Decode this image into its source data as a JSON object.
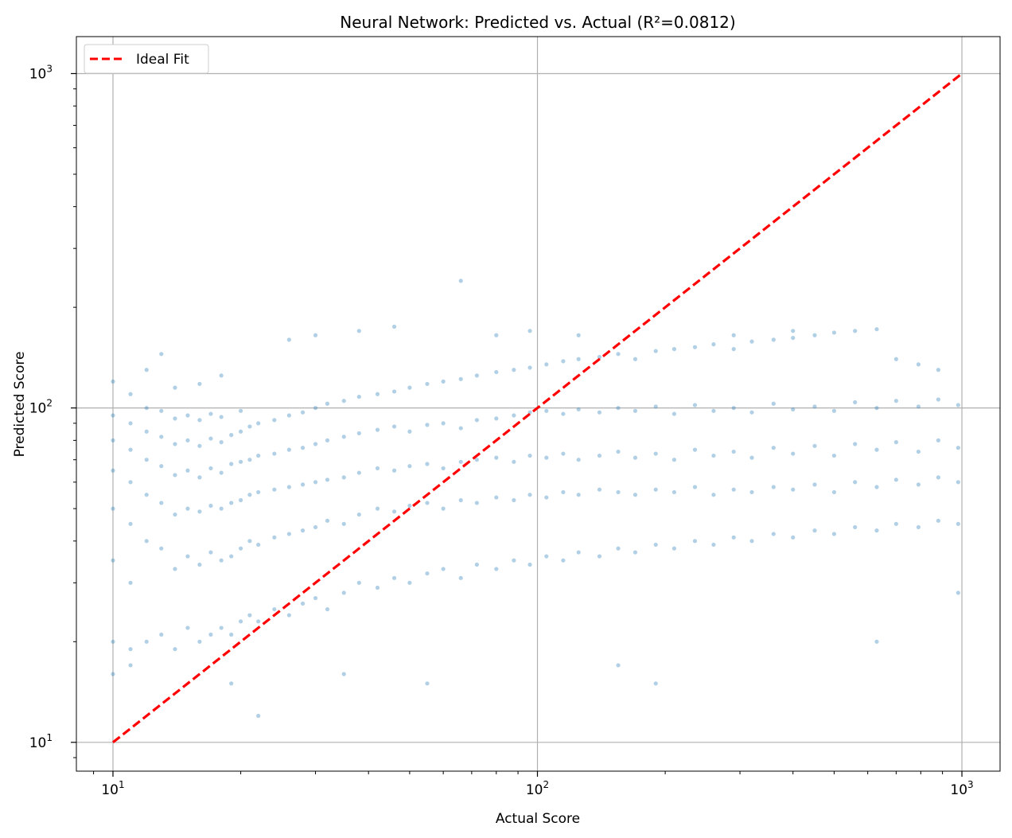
{
  "chart_data": {
    "type": "scatter",
    "title": "Neural Network: Predicted vs. Actual (R²=0.0812)",
    "xlabel": "Actual Score",
    "ylabel": "Predicted Score",
    "xscale": "log",
    "yscale": "log",
    "xlim": [
      8.2,
      1230
    ],
    "ylim": [
      8.2,
      1290
    ],
    "x_ticks": [
      {
        "value": 10,
        "base": "10",
        "exp": "1"
      },
      {
        "value": 100,
        "base": "10",
        "exp": "2"
      },
      {
        "value": 1000,
        "base": "10",
        "exp": "3"
      }
    ],
    "y_ticks": [
      {
        "value": 10,
        "base": "10",
        "exp": "1"
      },
      {
        "value": 100,
        "base": "10",
        "exp": "2"
      },
      {
        "value": 1000,
        "base": "10",
        "exp": "3"
      }
    ],
    "grid": true,
    "legend": {
      "position": "top-left",
      "entries": [
        "Ideal Fit"
      ]
    },
    "series": [
      {
        "kind": "scatter",
        "color": "#1f77b4",
        "opacity": 0.15,
        "points": [
          [
            10,
            20
          ],
          [
            10,
            35
          ],
          [
            10,
            50
          ],
          [
            10,
            65
          ],
          [
            10,
            80
          ],
          [
            10,
            95
          ],
          [
            10,
            120
          ],
          [
            10,
            16
          ],
          [
            11,
            19
          ],
          [
            11,
            30
          ],
          [
            11,
            45
          ],
          [
            11,
            60
          ],
          [
            11,
            75
          ],
          [
            11,
            90
          ],
          [
            11,
            110
          ],
          [
            11,
            17
          ],
          [
            12,
            20
          ],
          [
            12,
            40
          ],
          [
            12,
            55
          ],
          [
            12,
            70
          ],
          [
            12,
            85
          ],
          [
            12,
            100
          ],
          [
            12,
            130
          ],
          [
            13,
            21
          ],
          [
            13,
            38
          ],
          [
            13,
            52
          ],
          [
            13,
            67
          ],
          [
            13,
            82
          ],
          [
            13,
            98
          ],
          [
            13,
            145
          ],
          [
            14,
            19
          ],
          [
            14,
            33
          ],
          [
            14,
            48
          ],
          [
            14,
            63
          ],
          [
            14,
            78
          ],
          [
            14,
            93
          ],
          [
            14,
            115
          ],
          [
            15,
            22
          ],
          [
            15,
            36
          ],
          [
            15,
            50
          ],
          [
            15,
            65
          ],
          [
            15,
            80
          ],
          [
            15,
            95
          ],
          [
            16,
            20
          ],
          [
            16,
            34
          ],
          [
            16,
            49
          ],
          [
            16,
            62
          ],
          [
            16,
            77
          ],
          [
            16,
            92
          ],
          [
            16,
            118
          ],
          [
            17,
            21
          ],
          [
            17,
            37
          ],
          [
            17,
            51
          ],
          [
            17,
            66
          ],
          [
            17,
            81
          ],
          [
            17,
            96
          ],
          [
            18,
            22
          ],
          [
            18,
            35
          ],
          [
            18,
            50
          ],
          [
            18,
            64
          ],
          [
            18,
            79
          ],
          [
            18,
            94
          ],
          [
            18,
            125
          ],
          [
            19,
            21
          ],
          [
            19,
            36
          ],
          [
            19,
            52
          ],
          [
            19,
            68
          ],
          [
            19,
            83
          ],
          [
            19,
            15
          ],
          [
            20,
            23
          ],
          [
            20,
            38
          ],
          [
            20,
            53
          ],
          [
            20,
            69
          ],
          [
            20,
            85
          ],
          [
            20,
            98
          ],
          [
            21,
            24
          ],
          [
            21,
            40
          ],
          [
            21,
            55
          ],
          [
            21,
            70
          ],
          [
            21,
            88
          ],
          [
            22,
            23
          ],
          [
            22,
            39
          ],
          [
            22,
            56
          ],
          [
            22,
            72
          ],
          [
            22,
            90
          ],
          [
            22,
            12
          ],
          [
            24,
            25
          ],
          [
            24,
            41
          ],
          [
            24,
            57
          ],
          [
            24,
            73
          ],
          [
            24,
            92
          ],
          [
            26,
            24
          ],
          [
            26,
            42
          ],
          [
            26,
            58
          ],
          [
            26,
            75
          ],
          [
            26,
            95
          ],
          [
            26,
            160
          ],
          [
            28,
            26
          ],
          [
            28,
            43
          ],
          [
            28,
            59
          ],
          [
            28,
            76
          ],
          [
            28,
            97
          ],
          [
            30,
            27
          ],
          [
            30,
            44
          ],
          [
            30,
            60
          ],
          [
            30,
            78
          ],
          [
            30,
            100
          ],
          [
            30,
            165
          ],
          [
            32,
            25
          ],
          [
            32,
            46
          ],
          [
            32,
            61
          ],
          [
            32,
            80
          ],
          [
            32,
            103
          ],
          [
            35,
            28
          ],
          [
            35,
            45
          ],
          [
            35,
            62
          ],
          [
            35,
            82
          ],
          [
            35,
            105
          ],
          [
            35,
            16
          ],
          [
            38,
            30
          ],
          [
            38,
            48
          ],
          [
            38,
            64
          ],
          [
            38,
            84
          ],
          [
            38,
            108
          ],
          [
            38,
            170
          ],
          [
            42,
            29
          ],
          [
            42,
            50
          ],
          [
            42,
            66
          ],
          [
            42,
            86
          ],
          [
            42,
            110
          ],
          [
            46,
            31
          ],
          [
            46,
            49
          ],
          [
            46,
            65
          ],
          [
            46,
            88
          ],
          [
            46,
            112
          ],
          [
            46,
            175
          ],
          [
            50,
            30
          ],
          [
            50,
            51
          ],
          [
            50,
            67
          ],
          [
            50,
            85
          ],
          [
            50,
            115
          ],
          [
            55,
            32
          ],
          [
            55,
            52
          ],
          [
            55,
            68
          ],
          [
            55,
            89
          ],
          [
            55,
            118
          ],
          [
            55,
            15
          ],
          [
            60,
            33
          ],
          [
            60,
            50
          ],
          [
            60,
            66
          ],
          [
            60,
            90
          ],
          [
            60,
            120
          ],
          [
            66,
            31
          ],
          [
            66,
            53
          ],
          [
            66,
            69
          ],
          [
            66,
            87
          ],
          [
            66,
            122
          ],
          [
            66,
            240
          ],
          [
            72,
            34
          ],
          [
            72,
            52
          ],
          [
            72,
            70
          ],
          [
            72,
            92
          ],
          [
            72,
            125
          ],
          [
            80,
            33
          ],
          [
            80,
            54
          ],
          [
            80,
            71
          ],
          [
            80,
            93
          ],
          [
            80,
            128
          ],
          [
            80,
            165
          ],
          [
            88,
            35
          ],
          [
            88,
            53
          ],
          [
            88,
            69
          ],
          [
            88,
            95
          ],
          [
            88,
            130
          ],
          [
            96,
            34
          ],
          [
            96,
            55
          ],
          [
            96,
            72
          ],
          [
            96,
            97
          ],
          [
            96,
            132
          ],
          [
            96,
            170
          ],
          [
            105,
            36
          ],
          [
            105,
            54
          ],
          [
            105,
            71
          ],
          [
            105,
            98
          ],
          [
            105,
            135
          ],
          [
            115,
            35
          ],
          [
            115,
            56
          ],
          [
            115,
            73
          ],
          [
            115,
            96
          ],
          [
            115,
            138
          ],
          [
            125,
            37
          ],
          [
            125,
            55
          ],
          [
            125,
            70
          ],
          [
            125,
            99
          ],
          [
            125,
            140
          ],
          [
            125,
            165
          ],
          [
            140,
            36
          ],
          [
            140,
            57
          ],
          [
            140,
            72
          ],
          [
            140,
            97
          ],
          [
            140,
            142
          ],
          [
            155,
            38
          ],
          [
            155,
            56
          ],
          [
            155,
            74
          ],
          [
            155,
            100
          ],
          [
            155,
            145
          ],
          [
            155,
            17
          ],
          [
            170,
            37
          ],
          [
            170,
            55
          ],
          [
            170,
            71
          ],
          [
            170,
            98
          ],
          [
            170,
            140
          ],
          [
            190,
            39
          ],
          [
            190,
            57
          ],
          [
            190,
            73
          ],
          [
            190,
            101
          ],
          [
            190,
            148
          ],
          [
            190,
            15
          ],
          [
            210,
            38
          ],
          [
            210,
            56
          ],
          [
            210,
            70
          ],
          [
            210,
            96
          ],
          [
            210,
            150
          ],
          [
            235,
            40
          ],
          [
            235,
            58
          ],
          [
            235,
            75
          ],
          [
            235,
            102
          ],
          [
            235,
            152
          ],
          [
            260,
            39
          ],
          [
            260,
            55
          ],
          [
            260,
            72
          ],
          [
            260,
            98
          ],
          [
            260,
            155
          ],
          [
            290,
            41
          ],
          [
            290,
            57
          ],
          [
            290,
            74
          ],
          [
            290,
            100
          ],
          [
            290,
            150
          ],
          [
            290,
            165
          ],
          [
            320,
            40
          ],
          [
            320,
            56
          ],
          [
            320,
            71
          ],
          [
            320,
            97
          ],
          [
            320,
            158
          ],
          [
            360,
            42
          ],
          [
            360,
            58
          ],
          [
            360,
            76
          ],
          [
            360,
            103
          ],
          [
            360,
            160
          ],
          [
            400,
            41
          ],
          [
            400,
            57
          ],
          [
            400,
            73
          ],
          [
            400,
            99
          ],
          [
            400,
            162
          ],
          [
            400,
            170
          ],
          [
            450,
            43
          ],
          [
            450,
            59
          ],
          [
            450,
            77
          ],
          [
            450,
            101
          ],
          [
            450,
            165
          ],
          [
            500,
            42
          ],
          [
            500,
            56
          ],
          [
            500,
            72
          ],
          [
            500,
            98
          ],
          [
            500,
            168
          ],
          [
            560,
            44
          ],
          [
            560,
            60
          ],
          [
            560,
            78
          ],
          [
            560,
            104
          ],
          [
            560,
            170
          ],
          [
            630,
            43
          ],
          [
            630,
            58
          ],
          [
            630,
            75
          ],
          [
            630,
            100
          ],
          [
            630,
            172
          ],
          [
            630,
            20
          ],
          [
            700,
            45
          ],
          [
            700,
            61
          ],
          [
            700,
            79
          ],
          [
            700,
            105
          ],
          [
            700,
            140
          ],
          [
            790,
            44
          ],
          [
            790,
            59
          ],
          [
            790,
            74
          ],
          [
            790,
            101
          ],
          [
            790,
            135
          ],
          [
            880,
            46
          ],
          [
            880,
            62
          ],
          [
            880,
            80
          ],
          [
            880,
            106
          ],
          [
            880,
            130
          ],
          [
            980,
            45
          ],
          [
            980,
            60
          ],
          [
            980,
            76
          ],
          [
            980,
            102
          ],
          [
            980,
            28
          ]
        ]
      },
      {
        "kind": "line",
        "name": "Ideal Fit",
        "color": "#ff0000",
        "dash": "dashed",
        "x": [
          10,
          1000
        ],
        "y": [
          10,
          1000
        ]
      }
    ]
  }
}
